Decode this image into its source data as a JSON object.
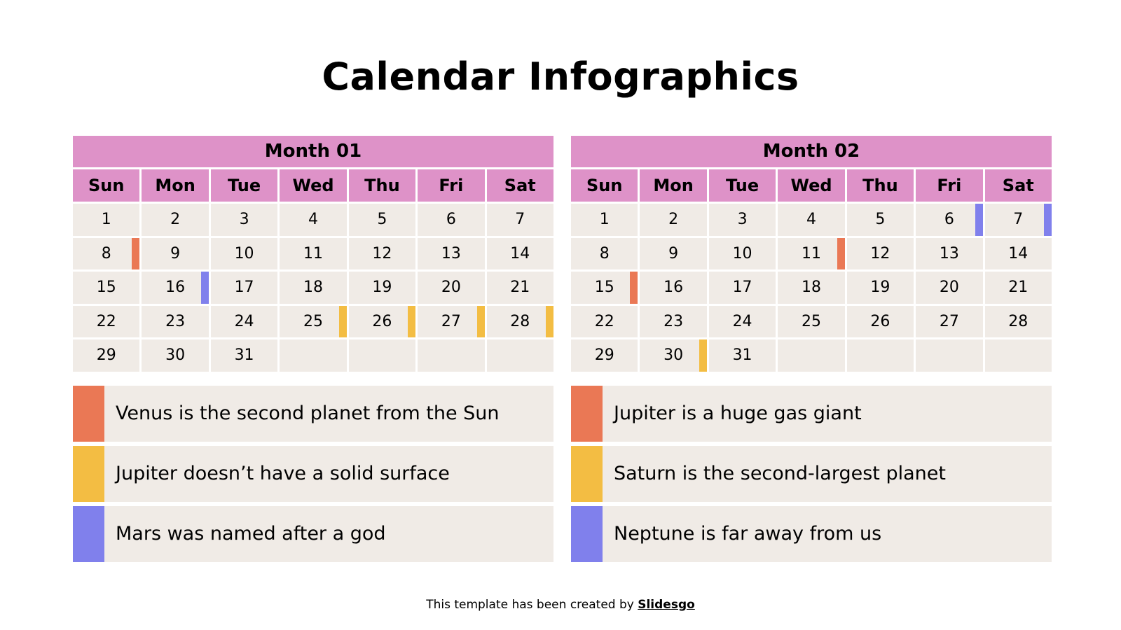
{
  "title": "Calendar Infographics",
  "colors": {
    "header": "#de92c8",
    "cell": "#f0ebe6",
    "orange": "#ea7855",
    "yellow": "#f3bd43",
    "purple": "#8080ec"
  },
  "weekdays": [
    "Sun",
    "Mon",
    "Tue",
    "Wed",
    "Thu",
    "Fri",
    "Sat"
  ],
  "months": [
    {
      "name": "Month 01",
      "days": [
        "1",
        "2",
        "3",
        "4",
        "5",
        "6",
        "7",
        "8",
        "9",
        "10",
        "11",
        "12",
        "13",
        "14",
        "15",
        "16",
        "17",
        "18",
        "19",
        "20",
        "21",
        "22",
        "23",
        "24",
        "25",
        "26",
        "27",
        "28",
        "29",
        "30",
        "31",
        "",
        "",
        "",
        ""
      ],
      "marks": {
        "8": "orange",
        "16": "purple",
        "25": "yellow",
        "26": "yellow",
        "27": "yellow",
        "28": "yellow"
      }
    },
    {
      "name": "Month 02",
      "days": [
        "1",
        "2",
        "3",
        "4",
        "5",
        "6",
        "7",
        "8",
        "9",
        "10",
        "11",
        "12",
        "13",
        "14",
        "15",
        "16",
        "17",
        "18",
        "19",
        "20",
        "21",
        "22",
        "23",
        "24",
        "25",
        "26",
        "27",
        "28",
        "29",
        "30",
        "31",
        "",
        "",
        "",
        ""
      ],
      "marks": {
        "6": "purple",
        "7": "purple",
        "11": "orange",
        "15": "orange",
        "30": "yellow"
      }
    }
  ],
  "legends": [
    [
      {
        "color": "orange",
        "text": "Venus is the second planet from the Sun"
      },
      {
        "color": "yellow",
        "text": "Jupiter doesn’t have a solid surface"
      },
      {
        "color": "purple",
        "text": "Mars was named after a god"
      }
    ],
    [
      {
        "color": "orange",
        "text": "Jupiter is a huge gas giant"
      },
      {
        "color": "yellow",
        "text": "Saturn is the second-largest planet"
      },
      {
        "color": "purple",
        "text": "Neptune is far away from us"
      }
    ]
  ],
  "footer": {
    "text": "This template has been created by ",
    "brand": "Slidesgo"
  }
}
